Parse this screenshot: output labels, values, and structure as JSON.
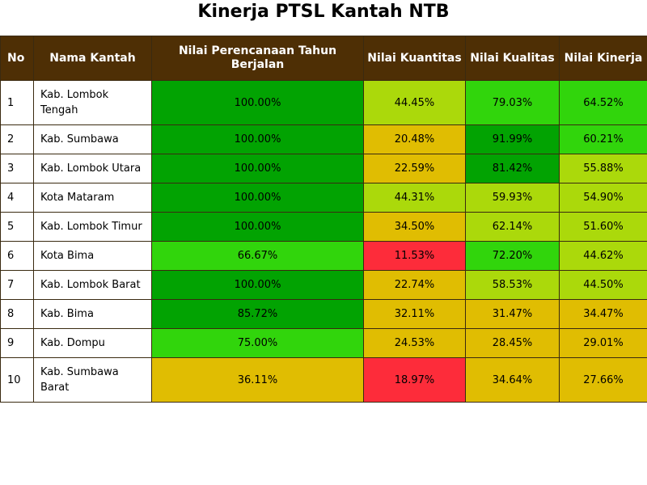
{
  "title": "Kinerja PTSL Kantah NTB",
  "colors": {
    "header": "#4e2f05",
    "dark_green": "#02a302",
    "green": "#31d50c",
    "light_green": "#abd90b",
    "yellow": "#e0bd02",
    "red": "#fd2c3a"
  },
  "headers": {
    "no": "No",
    "name": "Nama Kantah",
    "plan": "Nilai Perencanaan Tahun Berjalan",
    "quantity": "Nilai Kuantitas",
    "quality": "Nilai Kualitas",
    "performance": "Nilai Kinerja"
  },
  "rows": [
    {
      "no": "1",
      "name": "Kab. Lombok Tengah",
      "plan": "100.00%",
      "quantity": "44.45%",
      "quality": "79.03%",
      "performance": "64.52%",
      "c": [
        "#02a302",
        "#abd90b",
        "#31d50c",
        "#31d50c"
      ]
    },
    {
      "no": "2",
      "name": "Kab. Sumbawa",
      "plan": "100.00%",
      "quantity": "20.48%",
      "quality": "91.99%",
      "performance": "60.21%",
      "c": [
        "#02a302",
        "#e0bd02",
        "#02a302",
        "#31d50c"
      ]
    },
    {
      "no": "3",
      "name": "Kab. Lombok Utara",
      "plan": "100.00%",
      "quantity": "22.59%",
      "quality": "81.42%",
      "performance": "55.88%",
      "c": [
        "#02a302",
        "#e0bd02",
        "#02a302",
        "#abd90b"
      ]
    },
    {
      "no": "4",
      "name": "Kota Mataram",
      "plan": "100.00%",
      "quantity": "44.31%",
      "quality": "59.93%",
      "performance": "54.90%",
      "c": [
        "#02a302",
        "#abd90b",
        "#abd90b",
        "#abd90b"
      ]
    },
    {
      "no": "5",
      "name": "Kab. Lombok Timur",
      "plan": "100.00%",
      "quantity": "34.50%",
      "quality": "62.14%",
      "performance": "51.60%",
      "c": [
        "#02a302",
        "#e0bd02",
        "#abd90b",
        "#abd90b"
      ]
    },
    {
      "no": "6",
      "name": "Kota Bima",
      "plan": "66.67%",
      "quantity": "11.53%",
      "quality": "72.20%",
      "performance": "44.62%",
      "c": [
        "#31d50c",
        "#fd2c3a",
        "#31d50c",
        "#abd90b"
      ]
    },
    {
      "no": "7",
      "name": "Kab. Lombok Barat",
      "plan": "100.00%",
      "quantity": "22.74%",
      "quality": "58.53%",
      "performance": "44.50%",
      "c": [
        "#02a302",
        "#e0bd02",
        "#abd90b",
        "#abd90b"
      ]
    },
    {
      "no": "8",
      "name": "Kab. Bima",
      "plan": "85.72%",
      "quantity": "32.11%",
      "quality": "31.47%",
      "performance": "34.47%",
      "c": [
        "#02a302",
        "#e0bd02",
        "#e0bd02",
        "#e0bd02"
      ]
    },
    {
      "no": "9",
      "name": "Kab. Dompu",
      "plan": "75.00%",
      "quantity": "24.53%",
      "quality": "28.45%",
      "performance": "29.01%",
      "c": [
        "#31d50c",
        "#e0bd02",
        "#e0bd02",
        "#e0bd02"
      ]
    },
    {
      "no": "10",
      "name": "Kab. Sumbawa Barat",
      "plan": "36.11%",
      "quantity": "18.97%",
      "quality": "34.64%",
      "performance": "27.66%",
      "c": [
        "#e0bd02",
        "#fd2c3a",
        "#e0bd02",
        "#e0bd02"
      ]
    }
  ]
}
